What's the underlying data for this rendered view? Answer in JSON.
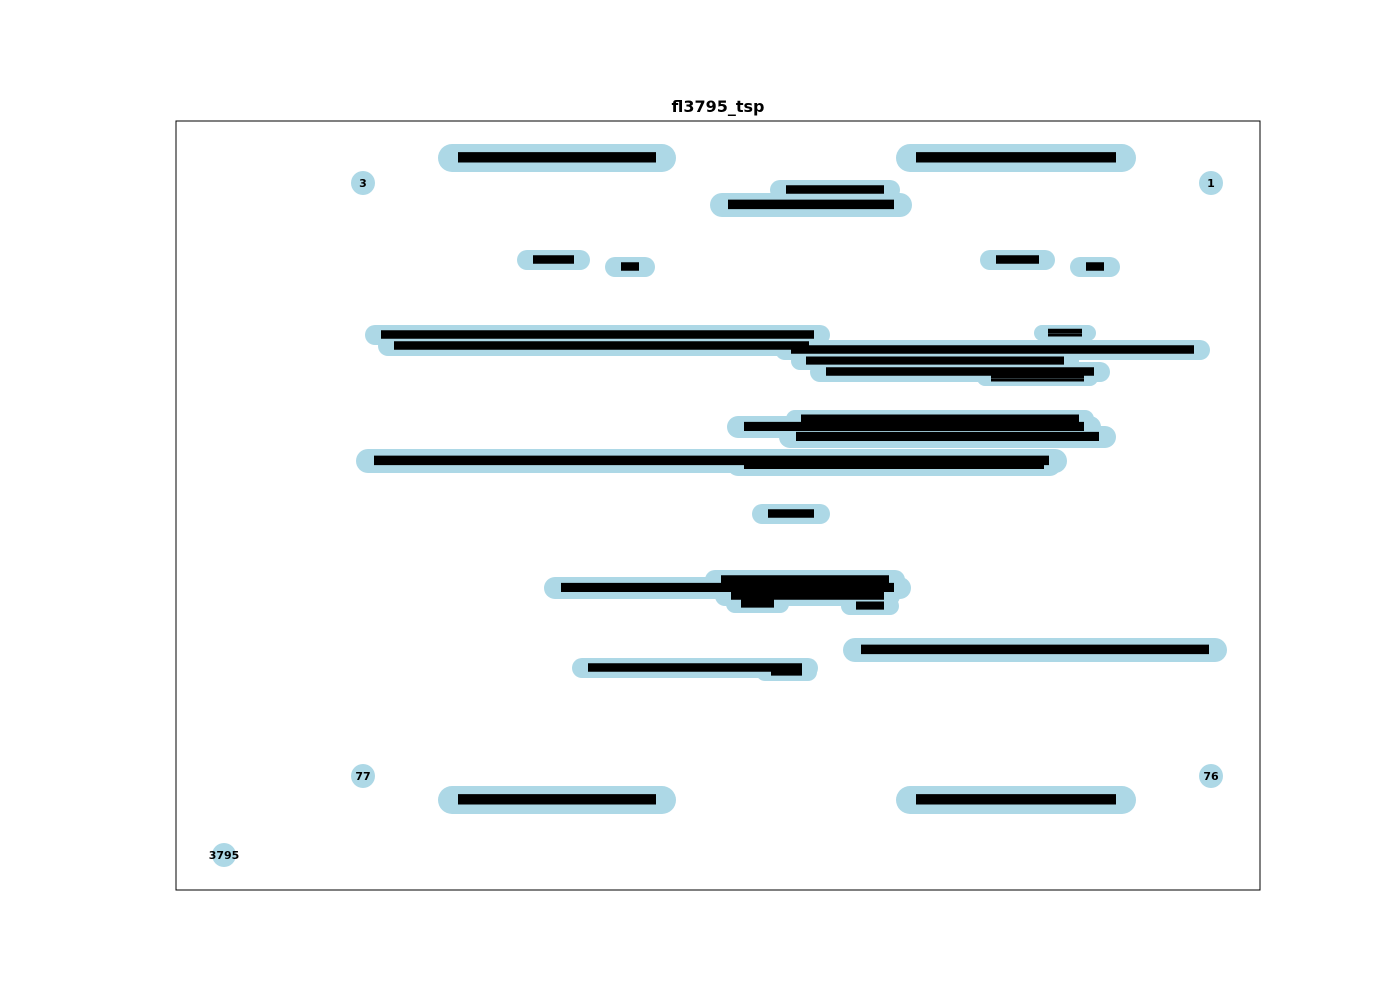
{
  "title": "fl3795_tsp",
  "colors": {
    "node_fill": "#add8e6",
    "edge": "#000000",
    "frame": "#000000",
    "background": "#ffffff"
  },
  "labeled_nodes": [
    {
      "id": "3"
    },
    {
      "id": "1"
    },
    {
      "id": "77"
    },
    {
      "id": "76"
    },
    {
      "id": "3795"
    }
  ]
}
